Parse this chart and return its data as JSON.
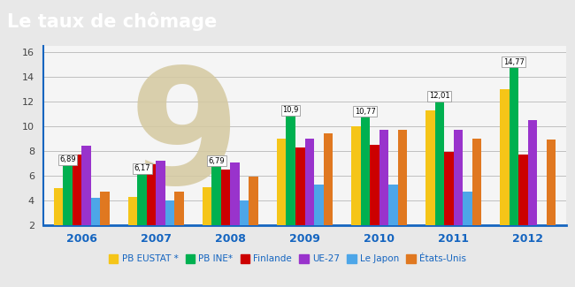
{
  "title": "Le taux de chômage",
  "title_bg": "#1565c0",
  "years": [
    "2006",
    "2007",
    "2008",
    "2009",
    "2010",
    "2011",
    "2012"
  ],
  "series": {
    "PB EUSTAT *": {
      "color": "#f5c518",
      "values": [
        5.0,
        4.3,
        5.1,
        9.0,
        10.0,
        11.3,
        13.0
      ]
    },
    "PB INE*": {
      "color": "#00b050",
      "values": [
        6.89,
        6.17,
        6.79,
        10.9,
        10.77,
        12.01,
        14.77
      ]
    },
    "Finlande": {
      "color": "#cc0000",
      "values": [
        7.7,
        6.9,
        6.5,
        8.3,
        8.5,
        7.9,
        7.7
      ]
    },
    "UE-27": {
      "color": "#9933cc",
      "values": [
        8.4,
        7.2,
        7.1,
        9.0,
        9.7,
        9.7,
        10.5
      ]
    },
    "Le Japon": {
      "color": "#4da6e8",
      "values": [
        4.2,
        4.0,
        4.0,
        5.3,
        5.3,
        4.7,
        0.0
      ]
    },
    "États-Unis": {
      "color": "#e07820",
      "values": [
        4.7,
        4.7,
        5.9,
        9.4,
        9.7,
        9.0,
        8.9
      ]
    }
  },
  "annotations": {
    "2006": {
      "series": "PB INE*",
      "label": "6,89"
    },
    "2007": {
      "series": "PB INE*",
      "label": "6,17"
    },
    "2008": {
      "series": "PB INE*",
      "label": "6,79"
    },
    "2009": {
      "series": "PB INE*",
      "label": "10,9"
    },
    "2010": {
      "series": "PB INE*",
      "label": "10,77"
    },
    "2011": {
      "series": "PB INE*",
      "label": "12,01"
    },
    "2012": {
      "series": "PB INE*",
      "label": "14,77"
    }
  },
  "ylim": [
    2,
    16.5
  ],
  "yticks": [
    2,
    4,
    6,
    8,
    10,
    12,
    14,
    16
  ],
  "bg_color": "#e8e8e8",
  "plot_bg": "#f5f5f5",
  "watermark_color": "#d5c9a0",
  "legend_text_color": "#1565c0",
  "axis_label_color": "#1565c0",
  "grid_color": "#c0c0c0"
}
